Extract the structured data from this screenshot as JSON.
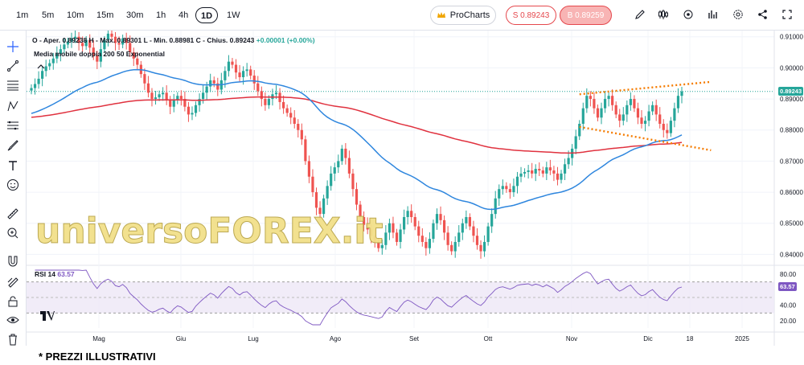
{
  "toolbar": {
    "timeframes": [
      "1m",
      "5m",
      "10m",
      "15m",
      "30m",
      "1h",
      "4h",
      "1D",
      "1W"
    ],
    "active_timeframe": "1D",
    "prochart_label": "ProCharts",
    "sell_label": "S 0.89243",
    "buy_label": "B 0.89259"
  },
  "legend": {
    "ohlc_text": "O - Aper. 0.89238  H - Max. 0.89301  L - Min. 0.88981  C - Chius. 0.89243",
    "change_text": "+0.00001 (+0.00%)",
    "ma_label": "Media mobile doppia 200 50 Exponential",
    "rsi_name": "RSI 14",
    "rsi_value": "63.57"
  },
  "watermark": "universoFOREX.it",
  "footer_note": "* PREZZI ILLUSTRATIVI",
  "colors": {
    "up": "#26a69a",
    "down": "#ef5350",
    "ma200": "#e0323f",
    "ma50": "#2e86de",
    "rsi": "#7e57c2",
    "trendline": "#f57c00"
  },
  "chart_data": {
    "type": "candlestick",
    "y_axis_ticks": [
      "0.91000",
      "0.90000",
      "0.89000",
      "0.88000",
      "0.87000",
      "0.86000",
      "0.85000",
      "0.84000"
    ],
    "ylim": [
      0.837,
      0.912
    ],
    "x_axis_labels": [
      "Mag",
      "Giu",
      "Lug",
      "Ago",
      "Set",
      "Ott",
      "Nov",
      "Dic",
      "18",
      "2025"
    ],
    "last_price_label": "0.89243",
    "rsi_ticks": [
      "80.00",
      "40.00",
      "20.00"
    ],
    "rsi_last_label": "63.57",
    "close_series": [
      0.8935,
      0.8948,
      0.8965,
      0.899,
      0.9005,
      0.9015,
      0.903,
      0.9045,
      0.906,
      0.9075,
      0.9085,
      0.9095,
      0.91,
      0.908,
      0.907,
      0.909,
      0.9065,
      0.904,
      0.902,
      0.906,
      0.909,
      0.911,
      0.91,
      0.908,
      0.9075,
      0.9095,
      0.908,
      0.905,
      0.903,
      0.901,
      0.898,
      0.895,
      0.892,
      0.89,
      0.8905,
      0.8915,
      0.892,
      0.8895,
      0.8875,
      0.8895,
      0.891,
      0.89,
      0.8875,
      0.885,
      0.8855,
      0.888,
      0.89,
      0.892,
      0.894,
      0.896,
      0.895,
      0.893,
      0.896,
      0.899,
      0.902,
      0.901,
      0.8985,
      0.897,
      0.899,
      0.8995,
      0.8975,
      0.895,
      0.8925,
      0.89,
      0.888,
      0.89,
      0.8915,
      0.892,
      0.889,
      0.887,
      0.8855,
      0.884,
      0.882,
      0.88,
      0.877,
      0.87,
      0.865,
      0.86,
      0.855,
      0.853,
      0.858,
      0.862,
      0.866,
      0.868,
      0.87,
      0.874,
      0.871,
      0.866,
      0.861,
      0.856,
      0.852,
      0.8495,
      0.848,
      0.846,
      0.844,
      0.842,
      0.843,
      0.847,
      0.85,
      0.847,
      0.844,
      0.848,
      0.852,
      0.854,
      0.852,
      0.849,
      0.846,
      0.844,
      0.842,
      0.845,
      0.85,
      0.853,
      0.851,
      0.847,
      0.843,
      0.841,
      0.844,
      0.847,
      0.85,
      0.852,
      0.849,
      0.846,
      0.843,
      0.841,
      0.844,
      0.849,
      0.853,
      0.858,
      0.861,
      0.862,
      0.861,
      0.86,
      0.862,
      0.865,
      0.866,
      0.8665,
      0.867,
      0.866,
      0.8675,
      0.867,
      0.866,
      0.868,
      0.867,
      0.866,
      0.864,
      0.866,
      0.869,
      0.871,
      0.874,
      0.878,
      0.882,
      0.887,
      0.891,
      0.89,
      0.887,
      0.884,
      0.887,
      0.89,
      0.891,
      0.888,
      0.885,
      0.883,
      0.885,
      0.888,
      0.89,
      0.887,
      0.884,
      0.882,
      0.883,
      0.886,
      0.888,
      0.885,
      0.882,
      0.88,
      0.879,
      0.883,
      0.887,
      0.891,
      0.8924
    ]
  }
}
